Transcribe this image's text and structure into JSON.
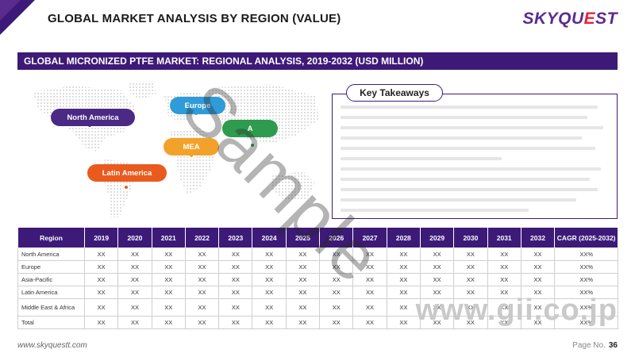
{
  "header": {
    "title": "GLOBAL MARKET ANALYSIS BY REGION (VALUE)",
    "logo_main": "SKYQU",
    "logo_accent": "E",
    "logo_end": "ST"
  },
  "banner": {
    "text": "GLOBAL MICRONIZED PTFE MARKET: REGIONAL ANALYSIS, 2019-2032 (USD MILLION)"
  },
  "map": {
    "labels": {
      "north_america": "North America",
      "europe": "Europe",
      "asia_pacific": "A",
      "mea": "MEA",
      "latin_america": "Latin America"
    }
  },
  "key_takeaways": {
    "title": "Key Takeaways"
  },
  "table": {
    "headers": [
      "Region",
      "2019",
      "2020",
      "2021",
      "2022",
      "2023",
      "2024",
      "2025",
      "2026",
      "2027",
      "2028",
      "2029",
      "2030",
      "2031",
      "2032",
      "CAGR (2025-2032)"
    ],
    "rows": [
      {
        "region": "North America",
        "values": [
          "XX",
          "XX",
          "XX",
          "XX",
          "XX",
          "XX",
          "XX",
          "XX",
          "XX",
          "XX",
          "XX",
          "XX",
          "XX",
          "XX",
          "XX%"
        ]
      },
      {
        "region": "Europe",
        "values": [
          "XX",
          "XX",
          "XX",
          "XX",
          "XX",
          "XX",
          "XX",
          "XX",
          "XX",
          "XX",
          "XX",
          "XX",
          "XX",
          "XX",
          "XX%"
        ]
      },
      {
        "region": "Asia-Pacific",
        "values": [
          "XX",
          "XX",
          "XX",
          "XX",
          "XX",
          "XX",
          "XX",
          "XX",
          "XX",
          "XX",
          "XX",
          "XX",
          "XX",
          "XX",
          "XX%"
        ]
      },
      {
        "region": "Latin America",
        "values": [
          "XX",
          "XX",
          "XX",
          "XX",
          "XX",
          "XX",
          "XX",
          "XX",
          "XX",
          "XX",
          "XX",
          "XX",
          "XX",
          "XX",
          "XX%"
        ]
      },
      {
        "region": "Middle East & Africa",
        "values": [
          "XX",
          "XX",
          "XX",
          "XX",
          "XX",
          "XX",
          "XX",
          "XX",
          "XX",
          "XX",
          "XX",
          "XX",
          "XX",
          "XX",
          "XX%"
        ]
      },
      {
        "region": "Total",
        "values": [
          "XX",
          "XX",
          "XX",
          "XX",
          "XX",
          "XX",
          "XX",
          "XX",
          "XX",
          "XX",
          "XX",
          "XX",
          "XX",
          "XX",
          "XX%"
        ]
      }
    ]
  },
  "footer": {
    "url": "www.skyquestt.com",
    "page_label": "Page No.",
    "page_number": "36"
  },
  "watermarks": {
    "sample": "Sample",
    "gii": "www.gii.co.jp"
  },
  "colors": {
    "primary": "#3d1a78",
    "accent": "#e2263c",
    "north_america": "#4a2a84",
    "europe": "#2f9bd8",
    "asia_pacific": "#2e9b4e",
    "mea": "#f2a22a",
    "latin_america": "#ea5a1e"
  }
}
